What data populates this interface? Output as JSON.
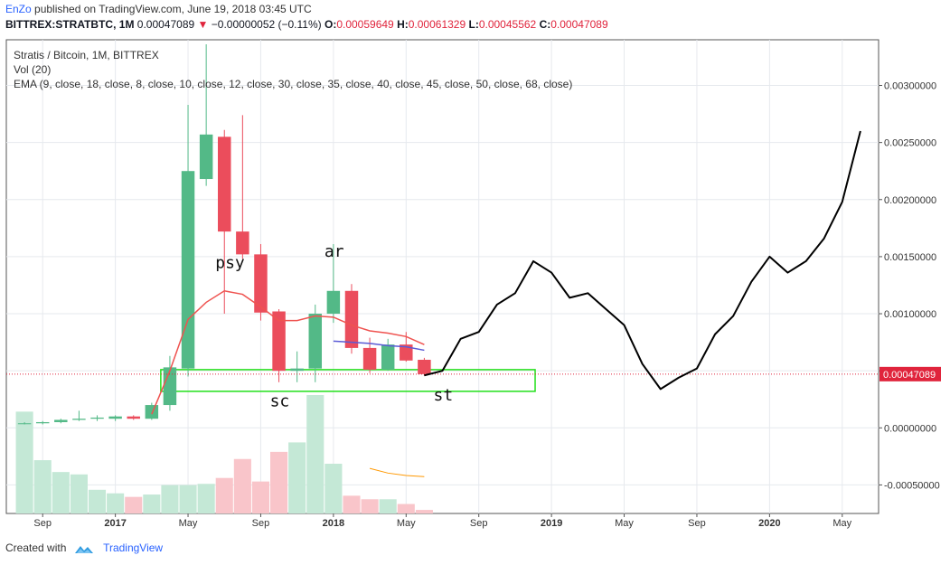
{
  "header": {
    "author": "EnZo",
    "published": "published on TradingView.com, June 19, 2018 03:45 UTC"
  },
  "quote": {
    "symbol": "BITTREX:STRATBTC, 1M",
    "last": "0.00047089",
    "arrow": "▼",
    "change": "−0.00000052 (−0.11%)",
    "o_label": "O:",
    "o": "0.00059649",
    "h_label": "H:",
    "h": "0.00061329",
    "l_label": "L:",
    "l": "0.00045562",
    "c_label": "C:",
    "c": "0.00047089"
  },
  "footer": {
    "created_with": "Created with",
    "brand": "TradingView"
  },
  "colors": {
    "up": "#53b987",
    "down": "#eb4d5c",
    "vol_up": "#c4e8d6",
    "vol_down": "#f9c5ca",
    "ema_red": "#ef5350",
    "ema_blue": "#5b5bd6",
    "ema_orange": "#ff9800",
    "box": "#22e01a",
    "price_line": "#e0243c",
    "projection": "#000000"
  },
  "chart_data": {
    "type": "candlestick",
    "title": "Stratis / Bitcoin, 1M, BITTREX",
    "indicators": [
      "Vol (20)",
      "EMA (9, close, 18, close, 8, close, 10, close, 12, close, 30, close, 35, close, 40, close, 45, close, 50, close, 68, close)"
    ],
    "y_axis": {
      "range": [
        -0.00075,
        0.0034
      ],
      "ticks": [
        -0.0005,
        0.0,
        0.0005,
        0.001,
        0.0015,
        0.002,
        0.0025,
        0.003
      ],
      "tick_labels": [
        "-0.00050000",
        "0.00000000",
        "0.00050000",
        "0.00100000",
        "0.00150000",
        "0.00200000",
        "0.00250000",
        "0.00300000"
      ],
      "last_price_label": "0.00047089",
      "last_price": 0.00047089
    },
    "x_axis": {
      "range": [
        "2016-07",
        "2020-07"
      ],
      "ticks": [
        {
          "date": "2016-09",
          "label": "Sep",
          "bold": false
        },
        {
          "date": "2017-01",
          "label": "2017",
          "bold": true
        },
        {
          "date": "2017-05",
          "label": "May",
          "bold": false
        },
        {
          "date": "2017-09",
          "label": "Sep",
          "bold": false
        },
        {
          "date": "2018-01",
          "label": "2018",
          "bold": true
        },
        {
          "date": "2018-05",
          "label": "May",
          "bold": false
        },
        {
          "date": "2018-09",
          "label": "Sep",
          "bold": false
        },
        {
          "date": "2019-01",
          "label": "2019",
          "bold": true
        },
        {
          "date": "2019-05",
          "label": "May",
          "bold": false
        },
        {
          "date": "2019-09",
          "label": "Sep",
          "bold": false
        },
        {
          "date": "2020-01",
          "label": "2020",
          "bold": true
        },
        {
          "date": "2020-05",
          "label": "May",
          "bold": false
        }
      ]
    },
    "candles": [
      {
        "date": "2016-08",
        "o": 4e-05,
        "h": 5e-05,
        "l": 3e-05,
        "c": 4e-05
      },
      {
        "date": "2016-09",
        "o": 4e-05,
        "h": 6e-05,
        "l": 3e-05,
        "c": 5e-05
      },
      {
        "date": "2016-10",
        "o": 5e-05,
        "h": 8e-05,
        "l": 4e-05,
        "c": 7e-05
      },
      {
        "date": "2016-11",
        "o": 7e-05,
        "h": 0.00015,
        "l": 6e-05,
        "c": 8e-05
      },
      {
        "date": "2016-12",
        "o": 8e-05,
        "h": 0.00011,
        "l": 6e-05,
        "c": 9e-05
      },
      {
        "date": "2017-01",
        "o": 8e-05,
        "h": 0.00011,
        "l": 6e-05,
        "c": 0.0001
      },
      {
        "date": "2017-02",
        "o": 0.0001,
        "h": 0.00011,
        "l": 7e-05,
        "c": 8e-05
      },
      {
        "date": "2017-03",
        "o": 8e-05,
        "h": 0.00022,
        "l": 7e-05,
        "c": 0.0002
      },
      {
        "date": "2017-04",
        "o": 0.0002,
        "h": 0.00063,
        "l": 0.00015,
        "c": 0.00053
      },
      {
        "date": "2017-05",
        "o": 0.00052,
        "h": 0.00283,
        "l": 0.00045,
        "c": 0.00225
      },
      {
        "date": "2017-06",
        "o": 0.00218,
        "h": 0.00336,
        "l": 0.00212,
        "c": 0.00257
      },
      {
        "date": "2017-07",
        "o": 0.00255,
        "h": 0.00261,
        "l": 0.001,
        "c": 0.00172
      },
      {
        "date": "2017-08",
        "o": 0.00172,
        "h": 0.00274,
        "l": 0.00148,
        "c": 0.00152
      },
      {
        "date": "2017-09",
        "o": 0.00152,
        "h": 0.00161,
        "l": 0.00094,
        "c": 0.00101
      },
      {
        "date": "2017-10",
        "o": 0.00102,
        "h": 0.00104,
        "l": 0.0004,
        "c": 0.0005
      },
      {
        "date": "2017-11",
        "o": 0.0005,
        "h": 0.00067,
        "l": 0.0004,
        "c": 0.00052
      },
      {
        "date": "2017-12",
        "o": 0.00052,
        "h": 0.00108,
        "l": 0.0004,
        "c": 0.001
      },
      {
        "date": "2018-01",
        "o": 0.001,
        "h": 0.00161,
        "l": 0.00092,
        "c": 0.0012
      },
      {
        "date": "2018-02",
        "o": 0.0012,
        "h": 0.00126,
        "l": 0.00065,
        "c": 0.0007
      },
      {
        "date": "2018-03",
        "o": 0.0007,
        "h": 0.00079,
        "l": 0.00048,
        "c": 0.00051
      },
      {
        "date": "2018-04",
        "o": 0.00051,
        "h": 0.00078,
        "l": 0.0005,
        "c": 0.00073
      },
      {
        "date": "2018-05",
        "o": 0.00073,
        "h": 0.00084,
        "l": 0.00058,
        "c": 0.00059
      },
      {
        "date": "2018-06",
        "o": 0.00059649,
        "h": 0.00061329,
        "l": 0.00045562,
        "c": 0.00047089
      }
    ],
    "volume_relative": [
      0.86,
      0.45,
      0.35,
      0.33,
      0.2,
      0.17,
      0.14,
      0.16,
      0.24,
      0.24,
      0.25,
      0.3,
      0.46,
      0.27,
      0.52,
      0.6,
      1.0,
      0.42,
      0.15,
      0.12,
      0.12,
      0.08,
      0.03
    ],
    "ema_red": [
      {
        "date": "2017-03",
        "v": 0.00012
      },
      {
        "date": "2017-04",
        "v": 0.0005
      },
      {
        "date": "2017-05",
        "v": 0.00095
      },
      {
        "date": "2017-06",
        "v": 0.0011
      },
      {
        "date": "2017-07",
        "v": 0.0012
      },
      {
        "date": "2017-08",
        "v": 0.00117
      },
      {
        "date": "2017-09",
        "v": 0.00106
      },
      {
        "date": "2017-10",
        "v": 0.00094
      },
      {
        "date": "2017-11",
        "v": 0.00094
      },
      {
        "date": "2017-12",
        "v": 0.00098
      },
      {
        "date": "2018-01",
        "v": 0.00097
      },
      {
        "date": "2018-02",
        "v": 0.0009
      },
      {
        "date": "2018-03",
        "v": 0.00085
      },
      {
        "date": "2018-04",
        "v": 0.00083
      },
      {
        "date": "2018-05",
        "v": 0.0008
      },
      {
        "date": "2018-06",
        "v": 0.00073
      }
    ],
    "ema_blue": [
      {
        "date": "2018-01",
        "v": 0.00076
      },
      {
        "date": "2018-02",
        "v": 0.00075
      },
      {
        "date": "2018-03",
        "v": 0.00074
      },
      {
        "date": "2018-04",
        "v": 0.00072
      },
      {
        "date": "2018-05",
        "v": 0.00071
      },
      {
        "date": "2018-06",
        "v": 0.00068
      }
    ],
    "vol_ma_relative": [
      {
        "date": "2018-03",
        "v": 0.32
      },
      {
        "date": "2018-04",
        "v": 0.28
      },
      {
        "date": "2018-05",
        "v": 0.26
      },
      {
        "date": "2018-06",
        "v": 0.25
      }
    ],
    "support_zone": {
      "from": "2017-04",
      "to": "2019-01",
      "low": 0.00032,
      "high": 0.00051
    },
    "annotations": [
      {
        "text": "psy",
        "date": "2017-07",
        "price": 0.0014
      },
      {
        "text": "ar",
        "date": "2018-01",
        "price": 0.0015
      },
      {
        "text": "sc",
        "date": "2017-10",
        "price": 0.00019
      },
      {
        "text": "st",
        "date": "2018-07",
        "price": 0.00024
      }
    ],
    "projection": [
      {
        "date": "2018-06",
        "v": 0.00046
      },
      {
        "date": "2018-07",
        "v": 0.0005
      },
      {
        "date": "2018-08",
        "v": 0.00078
      },
      {
        "date": "2018-09",
        "v": 0.00084
      },
      {
        "date": "2018-10",
        "v": 0.00108
      },
      {
        "date": "2018-11",
        "v": 0.00118
      },
      {
        "date": "2018-12",
        "v": 0.00146
      },
      {
        "date": "2019-01",
        "v": 0.00136
      },
      {
        "date": "2019-02",
        "v": 0.00114
      },
      {
        "date": "2019-03",
        "v": 0.00118
      },
      {
        "date": "2019-04",
        "v": 0.00104
      },
      {
        "date": "2019-05",
        "v": 0.0009
      },
      {
        "date": "2019-06",
        "v": 0.00056
      },
      {
        "date": "2019-07",
        "v": 0.00034
      },
      {
        "date": "2019-08",
        "v": 0.00044
      },
      {
        "date": "2019-09",
        "v": 0.00052
      },
      {
        "date": "2019-10",
        "v": 0.00082
      },
      {
        "date": "2019-11",
        "v": 0.00098
      },
      {
        "date": "2019-12",
        "v": 0.00128
      },
      {
        "date": "2020-01",
        "v": 0.0015
      },
      {
        "date": "2020-02",
        "v": 0.00136
      },
      {
        "date": "2020-03",
        "v": 0.00146
      },
      {
        "date": "2020-04",
        "v": 0.00166
      },
      {
        "date": "2020-05",
        "v": 0.00198
      },
      {
        "date": "2020-06",
        "v": 0.0026
      }
    ]
  }
}
